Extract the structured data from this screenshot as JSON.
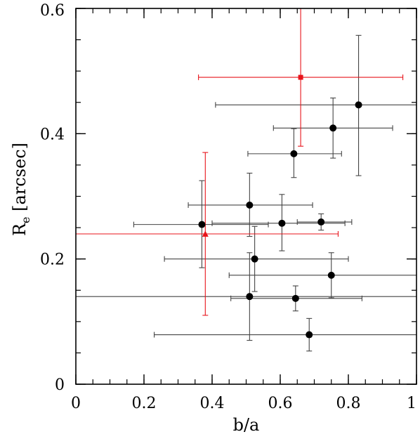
{
  "chart_data": {
    "type": "scatter",
    "title": "",
    "xlabel": "b/a",
    "ylabel_main": "R",
    "ylabel_sub": "e",
    "ylabel_rest": " [arcsec]",
    "xlim": [
      0,
      1
    ],
    "ylim": [
      0,
      0.6
    ],
    "xticks": [
      0,
      0.2,
      0.4,
      0.6,
      0.8,
      1
    ],
    "xtick_labels": [
      "0",
      "0.2",
      "0.4",
      "0.6",
      "0.8",
      "1"
    ],
    "yticks": [
      0,
      0.2,
      0.4,
      0.6
    ],
    "ytick_labels": [
      "0",
      "0.2",
      "0.4",
      "0.6"
    ],
    "x_minor_step": 0.05,
    "y_minor_step": 0.05,
    "grid": false,
    "series": [
      {
        "marker": "circle",
        "color": "#000000",
        "error_color": "#444444",
        "points": [
          {
            "x": 0.83,
            "y": 0.446,
            "xerr": [
              0.41,
              1.0
            ],
            "yerr": [
              0.333,
              0.557
            ]
          },
          {
            "x": 0.755,
            "y": 0.409,
            "xerr": [
              0.58,
              0.93
            ],
            "yerr": [
              0.361,
              0.457
            ]
          },
          {
            "x": 0.64,
            "y": 0.368,
            "xerr": [
              0.505,
              0.78
            ],
            "yerr": [
              0.33,
              0.408
            ]
          },
          {
            "x": 0.51,
            "y": 0.286,
            "xerr": [
              0.33,
              0.695
            ],
            "yerr": [
              0.236,
              0.337
            ]
          },
          {
            "x": 0.605,
            "y": 0.257,
            "xerr": [
              0.4,
              0.79
            ],
            "yerr": [
              0.213,
              0.303
            ]
          },
          {
            "x": 0.72,
            "y": 0.259,
            "xerr": [
              0.65,
              0.81
            ],
            "yerr": [
              0.246,
              0.272
            ]
          },
          {
            "x": 0.37,
            "y": 0.255,
            "xerr": [
              0.17,
              0.565
            ],
            "yerr": [
              0.186,
              0.325
            ]
          },
          {
            "x": 0.525,
            "y": 0.2,
            "xerr": [
              0.26,
              0.8
            ],
            "yerr": [
              0.148,
              0.252
            ]
          },
          {
            "x": 0.75,
            "y": 0.174,
            "xerr": [
              0.45,
              1.0
            ],
            "yerr": [
              0.138,
              0.21
            ]
          },
          {
            "x": 0.51,
            "y": 0.14,
            "xerr": [
              0.0,
              1.0
            ],
            "yerr": [
              0.07,
              0.21
            ]
          },
          {
            "x": 0.645,
            "y": 0.137,
            "xerr": [
              0.455,
              0.84
            ],
            "yerr": [
              0.117,
              0.157
            ]
          },
          {
            "x": 0.685,
            "y": 0.079,
            "xerr": [
              0.23,
              1.0
            ],
            "yerr": [
              0.053,
              0.105
            ]
          }
        ]
      },
      {
        "marker": "square",
        "color": "#e8141b",
        "error_color": "#e8141b",
        "points": [
          {
            "x": 0.66,
            "y": 0.49,
            "xerr": [
              0.36,
              0.96
            ],
            "yerr": [
              0.38,
              0.6
            ]
          }
        ]
      },
      {
        "marker": "triangle",
        "color": "#e8141b",
        "error_color": "#e8141b",
        "points": [
          {
            "x": 0.38,
            "y": 0.24,
            "xerr": [
              0.0,
              0.77
            ],
            "yerr": [
              0.11,
              0.37
            ]
          }
        ]
      }
    ]
  }
}
